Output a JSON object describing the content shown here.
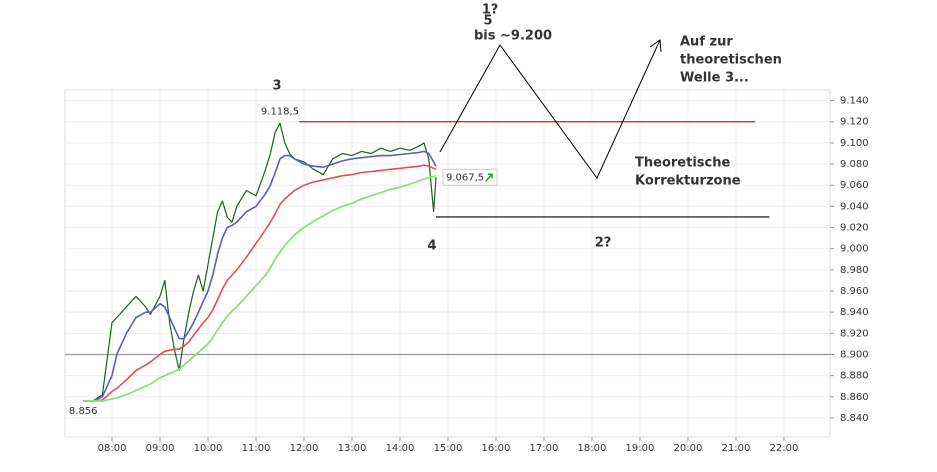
{
  "chart_data": {
    "type": "line",
    "x": [
      7.4,
      7.6,
      7.8,
      8.0,
      8.1,
      8.3,
      8.5,
      8.7,
      8.8,
      9.0,
      9.1,
      9.2,
      9.3,
      9.4,
      9.5,
      9.6,
      9.7,
      9.8,
      9.9,
      10.0,
      10.1,
      10.2,
      10.3,
      10.4,
      10.5,
      10.6,
      10.8,
      11.0,
      11.2,
      11.3,
      11.4,
      11.5,
      11.6,
      11.7,
      11.8,
      12.0,
      12.2,
      12.4,
      12.6,
      12.8,
      13.0,
      13.2,
      13.4,
      13.6,
      13.8,
      14.0,
      14.2,
      14.4,
      14.5,
      14.6,
      14.7,
      14.75
    ],
    "series": [
      {
        "color": "#1f5f1f",
        "width": 1.2,
        "values": [
          8856,
          8856,
          8862,
          8930,
          8935,
          8945,
          8955,
          8945,
          8938,
          8955,
          8970,
          8930,
          8905,
          8885,
          8915,
          8940,
          8960,
          8975,
          8960,
          8985,
          9010,
          9035,
          9045,
          9030,
          9025,
          9040,
          9055,
          9050,
          9075,
          9090,
          9110,
          9118.5,
          9100,
          9090,
          9085,
          9082,
          9075,
          9070,
          9085,
          9090,
          9088,
          9092,
          9090,
          9095,
          9092,
          9095,
          9093,
          9097,
          9100,
          9085,
          9035,
          9067.5
        ]
      },
      {
        "color": "#5a5fc0",
        "width": 1.6,
        "values": [
          8856,
          8856,
          8860,
          8880,
          8900,
          8920,
          8935,
          8940,
          8940,
          8948,
          8945,
          8935,
          8925,
          8915,
          8915,
          8922,
          8930,
          8940,
          8950,
          8960,
          8975,
          8995,
          9010,
          9020,
          9022,
          9025,
          9035,
          9040,
          9052,
          9060,
          9072,
          9085,
          9088,
          9088,
          9085,
          9080,
          9078,
          9077,
          9080,
          9083,
          9085,
          9086,
          9087,
          9088,
          9088,
          9089,
          9090,
          9091,
          9092,
          9090,
          9082,
          9078
        ]
      },
      {
        "color": "#e05050",
        "width": 1.6,
        "values": [
          8856,
          8856,
          8857,
          8865,
          8868,
          8876,
          8885,
          8890,
          8893,
          8900,
          8903,
          8904,
          8905,
          8905,
          8908,
          8912,
          8918,
          8924,
          8930,
          8935,
          8942,
          8952,
          8962,
          8970,
          8975,
          8980,
          8992,
          9005,
          9018,
          9025,
          9033,
          9042,
          9047,
          9051,
          9055,
          9060,
          9063,
          9065,
          9067,
          9069,
          9070,
          9072,
          9073,
          9074,
          9075,
          9076,
          9077,
          9078,
          9079,
          9078,
          9076,
          9075
        ]
      },
      {
        "color": "#8ee07a",
        "width": 1.8,
        "values": [
          8856,
          8856,
          8856,
          8858,
          8859,
          8862,
          8866,
          8870,
          8872,
          8878,
          8880,
          8882,
          8884,
          8886,
          8890,
          8894,
          8898,
          8902,
          8906,
          8910,
          8916,
          8923,
          8930,
          8936,
          8941,
          8945,
          8955,
          8965,
          8975,
          8982,
          8990,
          8997,
          9003,
          9008,
          9013,
          9020,
          9026,
          9031,
          9036,
          9040,
          9043,
          9047,
          9050,
          9053,
          9056,
          9058,
          9061,
          9064,
          9066,
          9067,
          9068,
          9069
        ]
      }
    ],
    "xlim": [
      7.02,
      22.96
    ],
    "xticks": [
      {
        "value": 8,
        "label": "08:00"
      },
      {
        "value": 9,
        "label": "09:00"
      },
      {
        "value": 10,
        "label": "10:00"
      },
      {
        "value": 11,
        "label": "11:00"
      },
      {
        "value": 12,
        "label": "12:00"
      },
      {
        "value": 13,
        "label": "13:00"
      },
      {
        "value": 14,
        "label": "14:00"
      },
      {
        "value": 15,
        "label": "15:00"
      },
      {
        "value": 16,
        "label": "16:00"
      },
      {
        "value": 17,
        "label": "17:00"
      },
      {
        "value": 18,
        "label": "18:00"
      },
      {
        "value": 19,
        "label": "19:00"
      },
      {
        "value": 20,
        "label": "20:00"
      },
      {
        "value": 21,
        "label": "21:00"
      },
      {
        "value": 22,
        "label": "22:00"
      }
    ],
    "ylim": [
      8822,
      9150
    ],
    "yticks": [
      {
        "value": 8840,
        "label": "8.840"
      },
      {
        "value": 8860,
        "label": "8.860"
      },
      {
        "value": 8880,
        "label": "8.880"
      },
      {
        "value": 8900,
        "label": "8.900"
      },
      {
        "value": 8920,
        "label": "8.920"
      },
      {
        "value": 8940,
        "label": "8.940"
      },
      {
        "value": 8960,
        "label": "8.960"
      },
      {
        "value": 8980,
        "label": "8.980"
      },
      {
        "value": 9000,
        "label": "9.000"
      },
      {
        "value": 9020,
        "label": "9.020"
      },
      {
        "value": 9040,
        "label": "9.040"
      },
      {
        "value": 9060,
        "label": "9.060"
      },
      {
        "value": 9080,
        "label": "9.080"
      },
      {
        "value": 9100,
        "label": "9.100"
      },
      {
        "value": 9120,
        "label": "9.120"
      },
      {
        "value": 9140,
        "label": "9.140"
      }
    ],
    "grid": true,
    "levels": [
      {
        "value": 9120,
        "x": [
          11.9,
          21.4
        ],
        "color": "#a03020"
      },
      {
        "value": 9030,
        "x": [
          14.75,
          21.7
        ],
        "color": "#000000"
      },
      {
        "value": 8900,
        "x": [
          7.02,
          22.96
        ],
        "color": "#999999"
      }
    ],
    "price_labels": [
      {
        "value": 9118.5,
        "label": "9.118,5",
        "x": 11.5
      },
      {
        "value": 8856,
        "label": "8.856",
        "x": 7.4
      },
      {
        "value": 9067.5,
        "label": "9.067,5",
        "x": 14.75
      }
    ],
    "annotations": [
      {
        "lines": [
          "1?"
        ],
        "color": "#e08020"
      },
      {
        "lines": [
          "5"
        ],
        "color": "#2aa02a"
      },
      {
        "lines": [
          "bis ~9.200"
        ],
        "color": "#000000"
      },
      {
        "lines": [
          "3"
        ],
        "color": "#2aa02a"
      },
      {
        "lines": [
          "Auf zur",
          "theoretischen",
          "Welle 3..."
        ],
        "color": "#000000"
      },
      {
        "lines": [
          "Theoretische",
          "Korrekturzone"
        ],
        "color": "#e08020"
      },
      {
        "lines": [
          "4"
        ],
        "color": "#2aa02a"
      },
      {
        "lines": [
          "2?"
        ],
        "color": "#e08020"
      }
    ]
  }
}
